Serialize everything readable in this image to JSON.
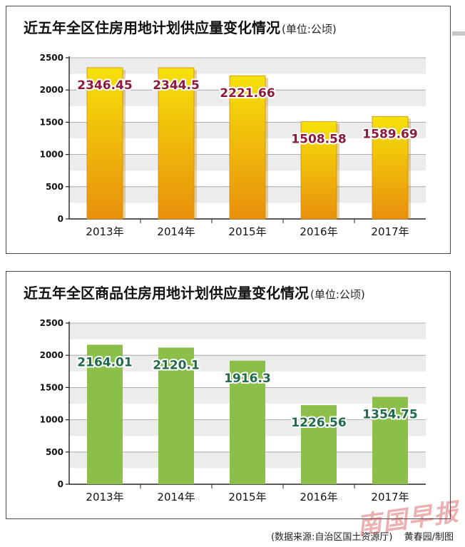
{
  "chart_data": [
    {
      "type": "bar",
      "title": "近五年全区住房用地计划供应量变化情况",
      "unit": "(单位:公顷)",
      "categories": [
        "2013年",
        "2014年",
        "2015年",
        "2016年",
        "2017年"
      ],
      "values": [
        2346.45,
        2344.5,
        2221.66,
        1508.58,
        1589.69
      ],
      "value_labels": [
        "2346.45",
        "2344.5",
        "2221.66",
        "1508.58",
        "1589.69"
      ],
      "ylim": [
        0,
        2500
      ],
      "yticks": [
        0,
        500,
        1000,
        1500,
        2000,
        2500
      ],
      "grid": true,
      "colors": {
        "bar_top": "#f6e10a",
        "bar_bottom": "#e8900c",
        "label": "#8b1a3c"
      }
    },
    {
      "type": "bar",
      "title": "近五年全区商品住房用地计划供应量变化情况",
      "unit": "(单位:公顷)",
      "categories": [
        "2013年",
        "2014年",
        "2015年",
        "2016年",
        "2017年"
      ],
      "values": [
        2164.01,
        2120.1,
        1916.3,
        1226.56,
        1354.75
      ],
      "value_labels": [
        "2164.01",
        "2120.1",
        "1916.3",
        "1226.56",
        "1354.75"
      ],
      "ylim": [
        0,
        2500
      ],
      "yticks": [
        0,
        500,
        1000,
        1500,
        2000,
        2500
      ],
      "grid": true,
      "colors": {
        "bar": "#8cbf4a",
        "label": "#1f6b4a"
      }
    }
  ],
  "source": "(数据来源:自治区国土资源厅)",
  "credit": "黄春园/制图",
  "watermark": "南国早报"
}
